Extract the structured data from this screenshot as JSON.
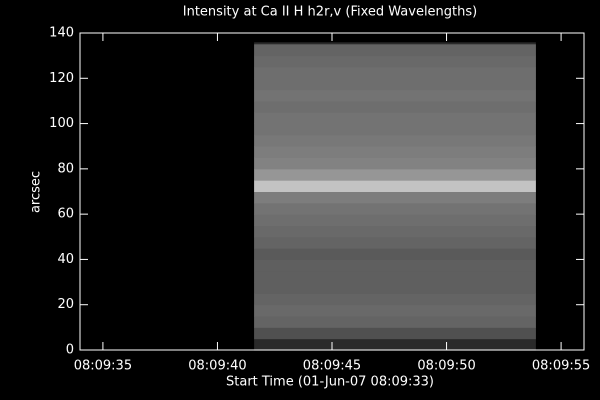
{
  "chart_data": {
    "type": "image",
    "title": "Intensity at Ca II H h2r,v (Fixed Wavelengths)",
    "x_label": "Start Time (01-Jun-07 08:09:33)",
    "y_label": "arcsec",
    "xlim": [
      34,
      56
    ],
    "xticks": [
      {
        "value": 35,
        "label": "08:09:35"
      },
      {
        "value": 40,
        "label": "08:09:40"
      },
      {
        "value": 45,
        "label": "08:09:45"
      },
      {
        "value": 50,
        "label": "08:09:50"
      },
      {
        "value": 55,
        "label": "08:09:55"
      }
    ],
    "ylim": [
      0,
      140
    ],
    "yticks": [
      0,
      20,
      40,
      60,
      80,
      100,
      120,
      140
    ],
    "colormap": "gray",
    "image": {
      "xlim": [
        41.6,
        53.9
      ],
      "ylim": [
        5,
        135
      ],
      "row_values": [
        80,
        100,
        105,
        100,
        95,
        95,
        95,
        90,
        100,
        105,
        110,
        115,
        125,
        195,
        150,
        130,
        125,
        120,
        115,
        115,
        110,
        115,
        110,
        110,
        105,
        100
      ]
    }
  }
}
